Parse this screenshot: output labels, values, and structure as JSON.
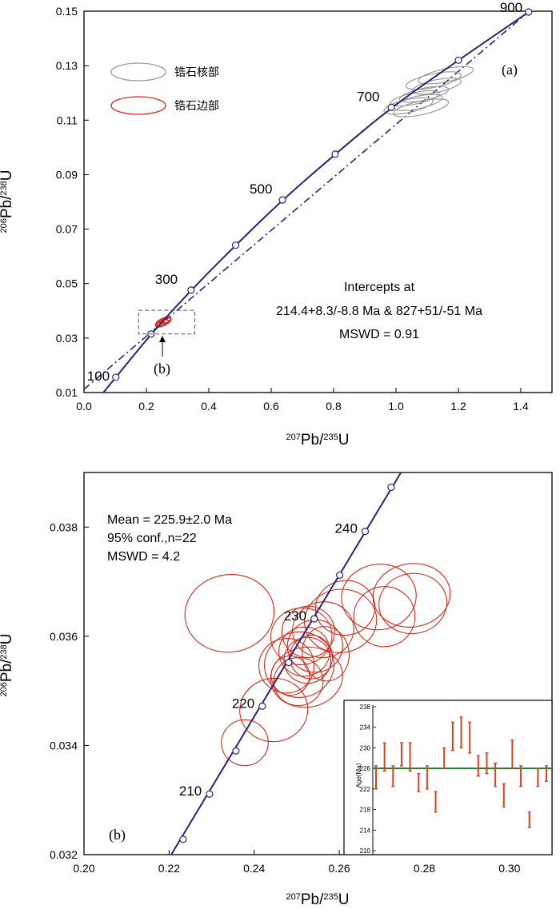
{
  "colors": {
    "concordia": "#2a2478",
    "discordia": "#2a2478",
    "rim": "#d52a1a",
    "core": "#9a9a9a",
    "mean_line": "#1f7a2e",
    "error_bar": "#d8431f"
  },
  "chart_data": [
    {
      "type": "scatter",
      "subtype": "concordia",
      "panel_label": "(a)",
      "xlabel": "207Pb/235U",
      "ylabel": "206Pb/238U",
      "xlim": [
        0.0,
        1.5
      ],
      "ylim": [
        0.01,
        0.15
      ],
      "xticks": [
        "0.0",
        "0.2",
        "0.4",
        "0.6",
        "0.8",
        "1.0",
        "1.2",
        "1.4"
      ],
      "yticks": [
        "0.01",
        "0.03",
        "0.05",
        "0.07",
        "0.09",
        "0.11",
        "0.13",
        "0.15"
      ],
      "concordia_points": [
        {
          "x": 0.102,
          "y": 0.0156,
          "age": "100"
        },
        {
          "x": 0.215,
          "y": 0.0315,
          "age": ""
        },
        {
          "x": 0.343,
          "y": 0.0476,
          "age": "300"
        },
        {
          "x": 0.486,
          "y": 0.0641,
          "age": ""
        },
        {
          "x": 0.636,
          "y": 0.0807,
          "age": "500"
        },
        {
          "x": 0.805,
          "y": 0.0975,
          "age": ""
        },
        {
          "x": 0.985,
          "y": 0.1147,
          "age": "700"
        },
        {
          "x": 1.2,
          "y": 0.132,
          "age": ""
        },
        {
          "x": 1.425,
          "y": 0.1497,
          "age": "900"
        }
      ],
      "discordia_line": {
        "x": [
          0.0,
          1.42
        ],
        "y": [
          0.0112,
          0.1493
        ]
      },
      "core_ellipses": [
        {
          "x": 1.12,
          "y": 0.1245,
          "rx": 0.09,
          "ry": 0.0025
        },
        {
          "x": 1.16,
          "y": 0.1265,
          "rx": 0.09,
          "ry": 0.0024
        },
        {
          "x": 1.09,
          "y": 0.1195,
          "rx": 0.08,
          "ry": 0.0022
        },
        {
          "x": 1.07,
          "y": 0.1165,
          "rx": 0.08,
          "ry": 0.0023
        },
        {
          "x": 1.08,
          "y": 0.1145,
          "rx": 0.09,
          "ry": 0.0025
        },
        {
          "x": 1.06,
          "y": 0.118,
          "rx": 0.08,
          "ry": 0.0021
        },
        {
          "x": 1.13,
          "y": 0.1225,
          "rx": 0.08,
          "ry": 0.0023
        },
        {
          "x": 1.04,
          "y": 0.1152,
          "rx": 0.08,
          "ry": 0.0024
        }
      ],
      "rim_cluster": [
        {
          "x": 0.255,
          "y": 0.036,
          "rx": 0.025,
          "ry": 0.0012
        },
        {
          "x": 0.25,
          "y": 0.0355,
          "rx": 0.022,
          "ry": 0.0011
        },
        {
          "x": 0.26,
          "y": 0.0365,
          "rx": 0.02,
          "ry": 0.001
        },
        {
          "x": 0.245,
          "y": 0.035,
          "rx": 0.015,
          "ry": 0.0008
        }
      ],
      "zoom_box": {
        "x0": 0.175,
        "x1": 0.355,
        "y0": 0.0315,
        "y1": 0.0402
      },
      "legend": [
        {
          "label": "锆石核部",
          "color": "#9a9a9a"
        },
        {
          "label": "锆石边部",
          "color": "#d52a1a"
        }
      ],
      "annotation_lines": [
        "Intercepts at",
        "214.4+8.3/-8.8 Ma & 827+51/-51 Ma",
        "MSWD = 0.91"
      ],
      "inset_label": "(b)"
    },
    {
      "type": "scatter",
      "subtype": "concordia",
      "panel_label": "(b)",
      "xlabel": "207Pb/235U",
      "ylabel": "206Pb/238U",
      "xlim": [
        0.2,
        0.31
      ],
      "ylim": [
        0.032,
        0.039
      ],
      "xticks": [
        "0.20",
        "0.22",
        "0.24",
        "0.26",
        "0.28",
        "0.30"
      ],
      "yticks": [
        "0.032",
        "0.034",
        "0.036",
        "0.038"
      ],
      "concordia_points": [
        {
          "x": 0.2233,
          "y": 0.03228,
          "age": ""
        },
        {
          "x": 0.2295,
          "y": 0.03311,
          "age": "210"
        },
        {
          "x": 0.2357,
          "y": 0.0339,
          "age": ""
        },
        {
          "x": 0.2419,
          "y": 0.03472,
          "age": "220"
        },
        {
          "x": 0.2481,
          "y": 0.03552,
          "age": ""
        },
        {
          "x": 0.2541,
          "y": 0.03632,
          "age": "230"
        },
        {
          "x": 0.2601,
          "y": 0.03712,
          "age": ""
        },
        {
          "x": 0.2661,
          "y": 0.03792,
          "age": "240"
        },
        {
          "x": 0.2722,
          "y": 0.03873,
          "age": ""
        }
      ],
      "ellipses": [
        {
          "x": 0.2342,
          "y": 0.03642,
          "rx": 0.0105,
          "ry": 0.00071
        },
        {
          "x": 0.2378,
          "y": 0.03405,
          "rx": 0.0055,
          "ry": 0.00042
        },
        {
          "x": 0.2446,
          "y": 0.03465,
          "rx": 0.008,
          "ry": 0.00058
        },
        {
          "x": 0.2506,
          "y": 0.03548,
          "rx": 0.0082,
          "ry": 0.0006
        },
        {
          "x": 0.2523,
          "y": 0.03525,
          "rx": 0.0085,
          "ry": 0.00055
        },
        {
          "x": 0.2476,
          "y": 0.03546,
          "rx": 0.0065,
          "ry": 0.0005
        },
        {
          "x": 0.2518,
          "y": 0.03572,
          "rx": 0.006,
          "ry": 0.00045
        },
        {
          "x": 0.2525,
          "y": 0.03556,
          "rx": 0.0055,
          "ry": 0.00042
        },
        {
          "x": 0.2534,
          "y": 0.03562,
          "rx": 0.005,
          "ry": 0.0004
        },
        {
          "x": 0.2485,
          "y": 0.03528,
          "rx": 0.0045,
          "ry": 0.00036
        },
        {
          "x": 0.2543,
          "y": 0.03582,
          "rx": 0.0065,
          "ry": 0.00048
        },
        {
          "x": 0.2511,
          "y": 0.036,
          "rx": 0.0072,
          "ry": 0.00052
        },
        {
          "x": 0.2504,
          "y": 0.03517,
          "rx": 0.0058,
          "ry": 0.00044
        },
        {
          "x": 0.2527,
          "y": 0.03608,
          "rx": 0.0062,
          "ry": 0.00047
        },
        {
          "x": 0.2568,
          "y": 0.03568,
          "rx": 0.0055,
          "ry": 0.0005
        },
        {
          "x": 0.2562,
          "y": 0.03612,
          "rx": 0.0072,
          "ry": 0.00051
        },
        {
          "x": 0.2603,
          "y": 0.03628,
          "rx": 0.0085,
          "ry": 0.00058
        },
        {
          "x": 0.2614,
          "y": 0.03652,
          "rx": 0.007,
          "ry": 0.0005
        },
        {
          "x": 0.2693,
          "y": 0.03672,
          "rx": 0.0088,
          "ry": 0.0006
        },
        {
          "x": 0.2706,
          "y": 0.03636,
          "rx": 0.0072,
          "ry": 0.00055
        },
        {
          "x": 0.277,
          "y": 0.03675,
          "rx": 0.0091,
          "ry": 0.00058
        },
        {
          "x": 0.2773,
          "y": 0.0366,
          "rx": 0.008,
          "ry": 0.00055
        }
      ],
      "annotation_lines": [
        "Mean = 225.9±2.0 Ma",
        "95% conf.,n=22",
        "MSWD = 4.2"
      ]
    },
    {
      "type": "scatter",
      "subtype": "error-bar inset",
      "ylabel": "Age(Ma)",
      "ylim": [
        210,
        238
      ],
      "yticks": [
        "210",
        "214",
        "218",
        "222",
        "226",
        "230",
        "234",
        "238"
      ],
      "mean": 226.0,
      "points": [
        {
          "low": 222.0,
          "high": 226.5
        },
        {
          "low": 225.5,
          "high": 231.0
        },
        {
          "low": 222.5,
          "high": 226.5
        },
        {
          "low": 226.5,
          "high": 231.0
        },
        {
          "low": 225.5,
          "high": 231.0
        },
        {
          "low": 221.5,
          "high": 225.0
        },
        {
          "low": 222.0,
          "high": 226.5
        },
        {
          "low": 217.5,
          "high": 221.5
        },
        {
          "low": 226.0,
          "high": 230.0
        },
        {
          "low": 229.5,
          "high": 235.0
        },
        {
          "low": 230.0,
          "high": 236.0
        },
        {
          "low": 229.0,
          "high": 235.0
        },
        {
          "low": 224.5,
          "high": 228.5
        },
        {
          "low": 225.0,
          "high": 229.0
        },
        {
          "low": 222.5,
          "high": 227.0
        },
        {
          "low": 218.5,
          "high": 223.0
        },
        {
          "low": 226.0,
          "high": 231.5
        },
        {
          "low": 222.5,
          "high": 226.5
        },
        {
          "low": 214.5,
          "high": 217.5
        },
        {
          "low": 222.5,
          "high": 226.0
        },
        {
          "low": 223.5,
          "high": 226.5
        }
      ]
    }
  ]
}
